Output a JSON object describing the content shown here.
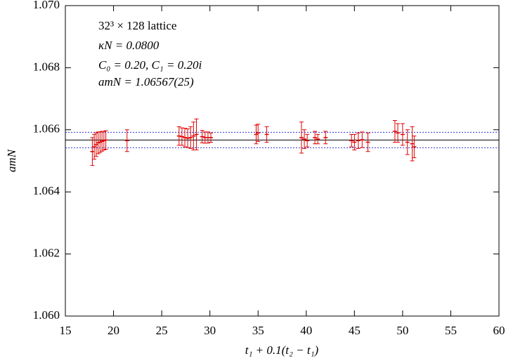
{
  "chart_data": {
    "type": "errorbar",
    "xlabel": "t₁ + 0.1(t₂ − t₁)",
    "ylabel": "amN",
    "annotations": [
      "32³ × 128 lattice",
      "κN = 0.0800",
      "C₀ = 0.20, C₁ = 0.20i",
      "amN = 1.06567(25)"
    ],
    "xlim": [
      15,
      60
    ],
    "xticks": [
      15,
      20,
      25,
      30,
      35,
      40,
      45,
      50,
      55,
      60
    ],
    "ylim": [
      1.06,
      1.07
    ],
    "yticks": [
      {
        "value": 1.06,
        "label": "1.060"
      },
      1.062,
      1.064,
      1.066,
      1.068,
      {
        "value": 1.07,
        "label": "1.070"
      }
    ],
    "series": [
      {
        "color": "#e00000",
        "x": [
          17.8,
          18.0,
          18.2,
          18.4,
          18.6,
          18.8,
          19.0,
          19.2,
          21.4,
          26.8,
          27.1,
          27.4,
          27.7,
          28.0,
          28.3,
          28.6,
          29.2,
          29.5,
          29.8,
          30.1,
          34.8,
          35.0,
          35.9,
          39.5,
          39.8,
          40.1,
          40.9,
          41.2,
          42.0,
          44.7,
          45.0,
          45.4,
          45.8,
          46.4,
          49.2,
          49.5,
          50.0,
          50.5,
          51.0,
          51.2
        ],
        "values": [
          1.0653,
          1.06545,
          1.06552,
          1.06558,
          1.0656,
          1.06563,
          1.06565,
          1.06567,
          1.06565,
          1.0658,
          1.06578,
          1.06575,
          1.06573,
          1.06575,
          1.0658,
          1.06585,
          1.06578,
          1.06575,
          1.06575,
          1.06575,
          1.06585,
          1.0659,
          1.06585,
          1.06575,
          1.0657,
          1.06565,
          1.06575,
          1.0657,
          1.06575,
          1.06565,
          1.0656,
          1.06565,
          1.06568,
          1.0656,
          1.06595,
          1.0659,
          1.06585,
          1.0656,
          1.06555,
          1.06545
        ],
        "errors": [
          0.00045,
          0.0004,
          0.00038,
          0.00035,
          0.00033,
          0.00032,
          0.0003,
          0.0003,
          0.00035,
          0.0003,
          0.00028,
          0.0003,
          0.0003,
          0.00035,
          0.00045,
          0.0005,
          0.0002,
          0.00018,
          0.00018,
          0.00015,
          0.0003,
          0.00028,
          0.00025,
          0.0005,
          0.0003,
          0.0002,
          0.0002,
          0.00015,
          0.0002,
          0.0002,
          0.00025,
          0.00025,
          0.00025,
          0.0003,
          0.00035,
          0.0003,
          0.00035,
          0.0004,
          0.00055,
          0.00035
        ]
      }
    ],
    "fit": {
      "value": 1.06567,
      "color": "#000000",
      "band": [
        1.06542,
        1.06592
      ],
      "band_color": "#3333cc"
    }
  }
}
